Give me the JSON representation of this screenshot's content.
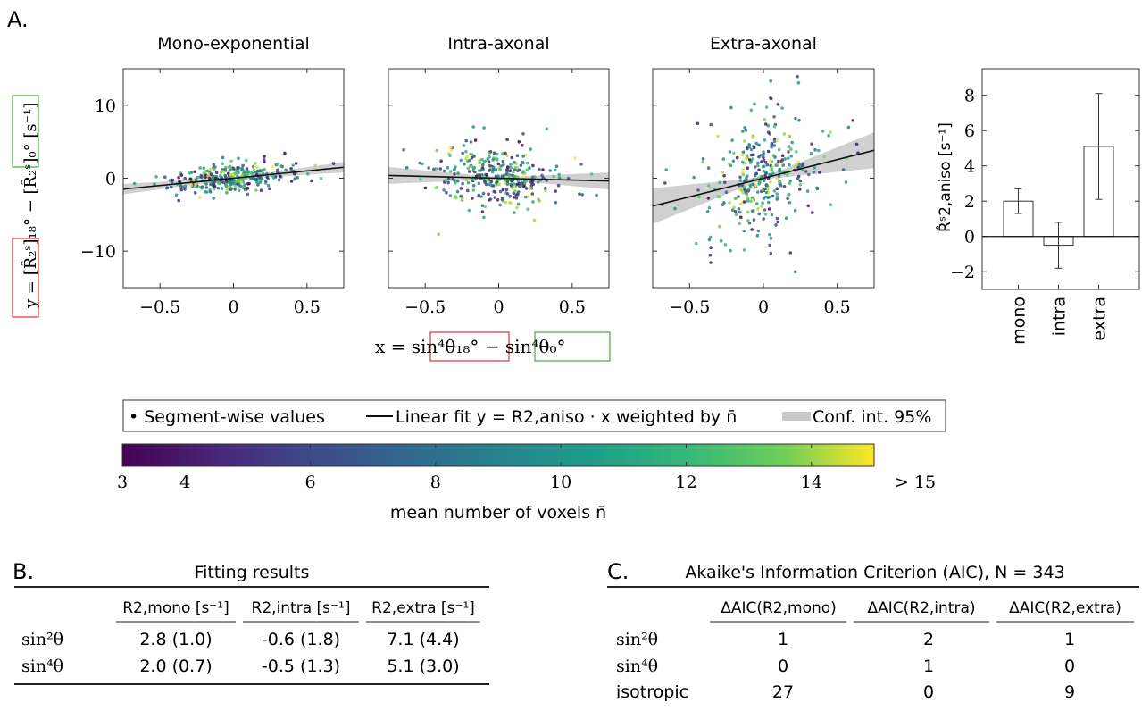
{
  "panel_a": {
    "label": "A.",
    "y_axis_label": "y = [R̂₂ˢ]₁₈° − [R̂₂ˢ]₀°  [s⁻¹]",
    "x_axis_label": "x = sin⁴θ₁₈° − sin⁴θ₀°",
    "legend": {
      "points": "• Segment-wise values",
      "fit": "Linear fit y = R2,aniso · x weighted by n̄",
      "ci": "Conf. int. 95%"
    },
    "colorbar": {
      "label": "mean number of voxels n̄",
      "ticks": [
        "3",
        "4",
        "6",
        "8",
        "10",
        "12",
        "14",
        "> 15"
      ],
      "tick_values": [
        3,
        4,
        6,
        8,
        10,
        12,
        14,
        15
      ],
      "colormap": "viridis"
    },
    "bar_ylabel": "R̂ˢ2,aniso [s⁻¹]"
  },
  "chart_data": [
    {
      "type": "scatter",
      "title": "Mono-exponential",
      "xlim": [
        -0.75,
        0.75
      ],
      "ylim": [
        -15,
        15
      ],
      "xticks": [
        -0.5,
        0,
        0.5
      ],
      "yticks": [
        -10,
        0,
        10
      ],
      "fit_slope": 2.0,
      "ci_halfwidth_at_edge": 0.55,
      "points_summary": {
        "n": 343,
        "x_center": 0,
        "x_spread": 0.18,
        "y_spread": 1.0,
        "slope": 2.0
      }
    },
    {
      "type": "scatter",
      "title": "Intra-axonal",
      "xlim": [
        -0.75,
        0.75
      ],
      "ylim": [
        -15,
        15
      ],
      "xticks": [
        -0.5,
        0,
        0.5
      ],
      "yticks": [],
      "fit_slope": -0.5,
      "ci_halfwidth_at_edge": 1.0,
      "points_summary": {
        "n": 343,
        "x_center": 0,
        "x_spread": 0.18,
        "y_spread": 2.2,
        "slope": -0.5
      }
    },
    {
      "type": "scatter",
      "title": "Extra-axonal",
      "xlim": [
        -0.75,
        0.75
      ],
      "ylim": [
        -15,
        15
      ],
      "xticks": [
        -0.5,
        0,
        0.5
      ],
      "yticks": [],
      "fit_slope": 5.1,
      "ci_halfwidth_at_edge": 2.3,
      "points_summary": {
        "n": 343,
        "x_center": 0,
        "x_spread": 0.18,
        "y_spread": 4.0,
        "slope": 5.1
      }
    },
    {
      "type": "bar",
      "categories": [
        "mono",
        "intra",
        "extra"
      ],
      "values": [
        2.0,
        -0.5,
        5.1
      ],
      "errors": [
        0.7,
        1.3,
        3.0
      ],
      "ylim": [
        -3,
        9.5
      ],
      "yticks": [
        -2,
        0,
        2,
        4,
        6,
        8
      ]
    }
  ],
  "panel_b": {
    "label": "B.",
    "title": "Fitting results",
    "columns": [
      "R2,mono [s⁻¹]",
      "R2,intra [s⁻¹]",
      "R2,extra [s⁻¹]"
    ],
    "rows": [
      {
        "label": "sin²θ",
        "values": [
          "2.8 (1.0)",
          "-0.6 (1.8)",
          "7.1 (4.4)"
        ]
      },
      {
        "label": "sin⁴θ",
        "values": [
          "2.0 (0.7)",
          "-0.5 (1.3)",
          "5.1 (3.0)"
        ]
      }
    ]
  },
  "panel_c": {
    "label": "C.",
    "title": "Akaike's Information Criterion (AIC), N = 343",
    "columns": [
      "ΔAIC(R2,mono)",
      "ΔAIC(R2,intra)",
      "ΔAIC(R2,extra)"
    ],
    "rows": [
      {
        "label": "sin²θ",
        "values": [
          "1",
          "2",
          "1"
        ]
      },
      {
        "label": "sin⁴θ",
        "values": [
          "0",
          "1",
          "0"
        ]
      },
      {
        "label": "isotropic",
        "values": [
          "27",
          "0",
          "9"
        ]
      }
    ]
  }
}
